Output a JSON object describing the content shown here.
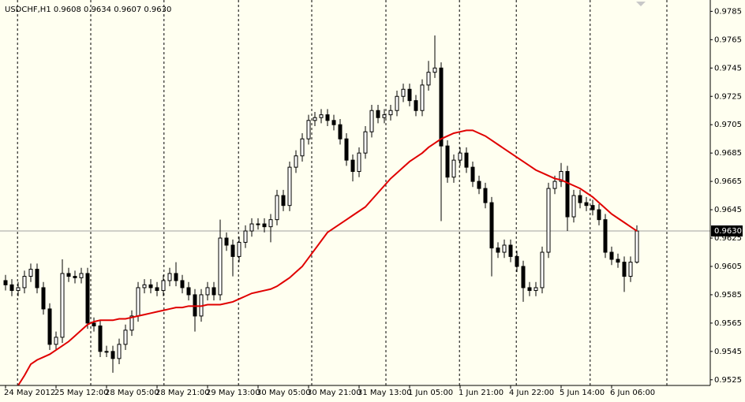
{
  "chart_data": {
    "type": "candlestick",
    "title": "USDCHF,H1  0.9608 0.9634 0.9607 0.9630",
    "open": [
      0.9595,
      0.9592,
      0.9588,
      0.959,
      0.9598,
      0.9603,
      0.959,
      0.9575,
      0.955,
      0.9555,
      0.96,
      0.9598,
      0.9597,
      0.96,
      0.9565,
      0.9563,
      0.9545,
      0.9545,
      0.954,
      0.955,
      0.956,
      0.957,
      0.959,
      0.9592,
      0.959,
      0.9588,
      0.9595,
      0.96,
      0.9595,
      0.959,
      0.9585,
      0.957,
      0.9585,
      0.959,
      0.9585,
      0.9625,
      0.962,
      0.9612,
      0.9622,
      0.963,
      0.9635,
      0.9635,
      0.9633,
      0.9638,
      0.9655,
      0.9648,
      0.9675,
      0.9683,
      0.9695,
      0.9708,
      0.971,
      0.9712,
      0.9708,
      0.9705,
      0.9695,
      0.968,
      0.9672,
      0.9685,
      0.97,
      0.9715,
      0.971,
      0.9712,
      0.9715,
      0.9725,
      0.973,
      0.9722,
      0.9715,
      0.9733,
      0.9742,
      0.9745,
      0.969,
      0.9668,
      0.968,
      0.9685,
      0.9675,
      0.9665,
      0.966,
      0.965,
      0.9618,
      0.9615,
      0.962,
      0.9612,
      0.9605,
      0.959,
      0.9588,
      0.959,
      0.9615,
      0.966,
      0.9665,
      0.9672,
      0.964,
      0.9655,
      0.965,
      0.9648,
      0.9645,
      0.9638,
      0.9615,
      0.961,
      0.9608,
      0.9598,
      0.9608
    ],
    "high": [
      0.9599,
      0.9596,
      0.9594,
      0.9602,
      0.9607,
      0.9607,
      0.9594,
      0.9579,
      0.9559,
      0.961,
      0.9604,
      0.9602,
      0.9604,
      0.9604,
      0.9569,
      0.9567,
      0.9549,
      0.9549,
      0.9554,
      0.9564,
      0.9574,
      0.9594,
      0.9596,
      0.9596,
      0.9594,
      0.9599,
      0.9604,
      0.9608,
      0.9599,
      0.9594,
      0.9589,
      0.9589,
      0.9594,
      0.9594,
      0.9638,
      0.9629,
      0.9624,
      0.9626,
      0.9634,
      0.9639,
      0.9639,
      0.9639,
      0.9642,
      0.9659,
      0.9659,
      0.9679,
      0.9687,
      0.9699,
      0.9712,
      0.9714,
      0.9716,
      0.9716,
      0.9712,
      0.9709,
      0.9699,
      0.9684,
      0.9689,
      0.9704,
      0.9719,
      0.9719,
      0.9716,
      0.9719,
      0.9729,
      0.9734,
      0.9734,
      0.9726,
      0.9737,
      0.975,
      0.9768,
      0.9749,
      0.9694,
      0.9684,
      0.9689,
      0.9689,
      0.9679,
      0.9669,
      0.9664,
      0.9654,
      0.9622,
      0.9624,
      0.9624,
      0.9616,
      0.9609,
      0.9594,
      0.9594,
      0.9619,
      0.9664,
      0.9669,
      0.9678,
      0.9676,
      0.9659,
      0.9659,
      0.9654,
      0.9652,
      0.9649,
      0.9642,
      0.9619,
      0.9614,
      0.9612,
      0.9612,
      0.9634
    ],
    "low": [
      0.9588,
      0.9584,
      0.9584,
      0.9586,
      0.9594,
      0.9586,
      0.9571,
      0.9546,
      0.9546,
      0.9551,
      0.9594,
      0.9593,
      0.9593,
      0.9561,
      0.9559,
      0.9541,
      0.9541,
      0.953,
      0.9536,
      0.9546,
      0.9556,
      0.9566,
      0.9586,
      0.9586,
      0.9584,
      0.9584,
      0.9591,
      0.9591,
      0.9586,
      0.9581,
      0.9559,
      0.9566,
      0.9581,
      0.9581,
      0.9581,
      0.9616,
      0.9598,
      0.9608,
      0.9618,
      0.9626,
      0.9631,
      0.9629,
      0.9622,
      0.9634,
      0.9644,
      0.9644,
      0.9671,
      0.9679,
      0.9691,
      0.9704,
      0.9706,
      0.9704,
      0.9701,
      0.9691,
      0.9676,
      0.9665,
      0.9668,
      0.9681,
      0.9696,
      0.9706,
      0.9706,
      0.9708,
      0.9711,
      0.9721,
      0.9718,
      0.9711,
      0.9711,
      0.9729,
      0.9738,
      0.9637,
      0.9664,
      0.9664,
      0.9676,
      0.9671,
      0.9661,
      0.9656,
      0.9646,
      0.9598,
      0.9611,
      0.9611,
      0.9608,
      0.9601,
      0.958,
      0.9584,
      0.9584,
      0.9586,
      0.9611,
      0.9656,
      0.9661,
      0.963,
      0.9636,
      0.9646,
      0.9644,
      0.9641,
      0.9634,
      0.9611,
      0.9606,
      0.9604,
      0.9587,
      0.9594,
      0.9607
    ],
    "close": [
      0.9592,
      0.9588,
      0.959,
      0.9598,
      0.9603,
      0.959,
      0.9575,
      0.955,
      0.9555,
      0.96,
      0.9598,
      0.9597,
      0.96,
      0.9565,
      0.9563,
      0.9545,
      0.9545,
      0.954,
      0.955,
      0.956,
      0.957,
      0.959,
      0.9592,
      0.959,
      0.9588,
      0.9595,
      0.96,
      0.9595,
      0.959,
      0.9585,
      0.957,
      0.9585,
      0.959,
      0.9585,
      0.9625,
      0.962,
      0.9612,
      0.9622,
      0.963,
      0.9635,
      0.9635,
      0.9633,
      0.9638,
      0.9655,
      0.9648,
      0.9675,
      0.9683,
      0.9695,
      0.9708,
      0.971,
      0.9712,
      0.9708,
      0.9705,
      0.9695,
      0.968,
      0.9672,
      0.9685,
      0.97,
      0.9715,
      0.971,
      0.9712,
      0.9715,
      0.9725,
      0.973,
      0.9722,
      0.9715,
      0.9733,
      0.9742,
      0.9745,
      0.969,
      0.9668,
      0.968,
      0.9685,
      0.9675,
      0.9665,
      0.966,
      0.965,
      0.9618,
      0.9615,
      0.962,
      0.9612,
      0.9605,
      0.959,
      0.9588,
      0.959,
      0.9615,
      0.966,
      0.9665,
      0.9672,
      0.964,
      0.9655,
      0.965,
      0.9648,
      0.9645,
      0.9638,
      0.9615,
      0.961,
      0.9608,
      0.9598,
      0.9608,
      0.963
    ],
    "up_color": "#ffffff",
    "down_color": "#000000",
    "ma": {
      "color": "#e00000",
      "values": [
        null,
        null,
        0.9521,
        0.9528,
        0.9536,
        0.9539,
        0.9541,
        0.9543,
        0.9546,
        0.9549,
        0.9552,
        0.9556,
        0.956,
        0.9564,
        0.9566,
        0.9567,
        0.9567,
        0.9567,
        0.9568,
        0.9568,
        0.9569,
        0.957,
        0.9571,
        0.9572,
        0.9573,
        0.9574,
        0.9575,
        0.9576,
        0.9576,
        0.9577,
        0.9577,
        0.9577,
        0.9578,
        0.9578,
        0.9578,
        0.9579,
        0.958,
        0.9582,
        0.9584,
        0.9586,
        0.9587,
        0.9588,
        0.9589,
        0.9591,
        0.9594,
        0.9597,
        0.9601,
        0.9605,
        0.9611,
        0.9617,
        0.9623,
        0.9629,
        0.9632,
        0.9635,
        0.9638,
        0.9641,
        0.9644,
        0.9647,
        0.9652,
        0.9657,
        0.9662,
        0.9667,
        0.9671,
        0.9675,
        0.9679,
        0.9682,
        0.9685,
        0.9689,
        0.9692,
        0.9695,
        0.9697,
        0.9699,
        0.97,
        0.9701,
        0.9701,
        0.9699,
        0.9697,
        0.9694,
        0.9691,
        0.9688,
        0.9685,
        0.9682,
        0.9679,
        0.9676,
        0.9673,
        0.9671,
        0.9669,
        0.9667,
        0.9666,
        0.9664,
        0.9662,
        0.966,
        0.9657,
        0.9654,
        0.965,
        0.9646,
        0.9642,
        0.9639,
        0.9636,
        0.9633,
        0.963
      ]
    },
    "ylim": [
      0.9521,
      0.9793
    ],
    "yticks": [
      0.9785,
      0.9765,
      0.9745,
      0.9725,
      0.9705,
      0.9685,
      0.9665,
      0.9645,
      0.9625,
      0.9605,
      0.9585,
      0.9565,
      0.9545,
      0.9525
    ],
    "xlim": [
      -0.875,
      111.625
    ],
    "xticks": [
      {
        "value": 0,
        "label": "24 May 2012"
      },
      {
        "value": 8,
        "label": "25 May 12:00"
      },
      {
        "value": 16,
        "label": "28 May 05:00"
      },
      {
        "value": 24,
        "label": "28 May 21:00"
      },
      {
        "value": 32,
        "label": "29 May 13:00"
      },
      {
        "value": 40,
        "label": "30 May 05:00"
      },
      {
        "value": 48,
        "label": "30 May 21:00"
      },
      {
        "value": 56,
        "label": "31 May 13:00"
      },
      {
        "value": 64,
        "label": "1 Jun 05:00"
      },
      {
        "value": 72,
        "label": "1 Jun 21:00"
      },
      {
        "value": 80,
        "label": "4 Jun 22:00"
      },
      {
        "value": 88,
        "label": "5 Jun 14:00"
      },
      {
        "value": 96,
        "label": "6 Jun 06:00"
      }
    ],
    "vgrid": [
      1.9,
      13.5,
      25.1,
      36.9,
      48.5,
      60.25,
      71.9,
      80.9,
      92.6,
      104.75
    ],
    "current": {
      "value": 0.963,
      "label": "0.9630"
    }
  }
}
